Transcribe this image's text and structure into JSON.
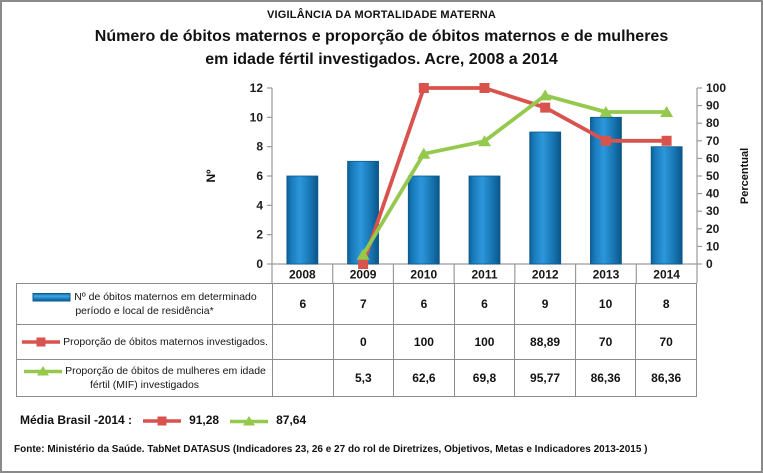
{
  "header": {
    "surtitle": "VIGILÂNCIA DA MORTALIDADE MATERNA",
    "title": "Número de óbitos maternos e proporção de óbitos maternos e de mulheres\nem idade fértil investigados. Acre, 2008 a 2014"
  },
  "chart_data": {
    "type": "bar+line combo",
    "title": "Número de óbitos maternos e proporção de óbitos maternos e de mulheres em idade fértil investigados. Acre, 2008 a 2014",
    "categories": [
      "2008",
      "2009",
      "2010",
      "2011",
      "2012",
      "2013",
      "2014"
    ],
    "series": [
      {
        "name": "Nº  de óbitos maternos em determinado período e local de residência*",
        "type": "bar",
        "axis": "left",
        "color": "#1B84C8",
        "marker": "none",
        "values": [
          6,
          7,
          6,
          6,
          9,
          10,
          8
        ]
      },
      {
        "name": "Proporção de óbitos maternos investigados.",
        "type": "line",
        "axis": "right",
        "color": "#D9534E",
        "marker": "square",
        "values": [
          null,
          0,
          100,
          100,
          88.89,
          70,
          70
        ]
      },
      {
        "name": "Proporção de óbitos de mulheres em idade fértil (MIF) investigados",
        "type": "line",
        "axis": "right",
        "color": "#94C94E",
        "marker": "triangle",
        "values": [
          null,
          5.3,
          62.6,
          69.8,
          95.77,
          86.36,
          86.36
        ]
      }
    ],
    "left_axis": {
      "label": "Nº",
      "min": 0,
      "max": 12,
      "step": 2
    },
    "right_axis": {
      "label": "Percentual",
      "min": 0,
      "max": 100,
      "step": 10
    },
    "grid": false,
    "legend_position": "data-table-below"
  },
  "table": {
    "rows": [
      {
        "icon": "bar",
        "color": "#1B84C8",
        "label": "Nº  de óbitos maternos em determinado período e local de residência*",
        "values": [
          "6",
          "7",
          "6",
          "6",
          "9",
          "10",
          "8"
        ]
      },
      {
        "icon": "line-square",
        "color": "#D9534E",
        "label": "Proporção de óbitos maternos investigados.",
        "values": [
          "",
          "0",
          "100",
          "100",
          "88,89",
          "70",
          "70"
        ]
      },
      {
        "icon": "line-triangle",
        "color": "#94C94E",
        "label": "Proporção de óbitos de mulheres em idade fértil (MIF) investigados",
        "values": [
          "",
          "5,3",
          "62,6",
          "69,8",
          "95,77",
          "86,36",
          "86,36"
        ]
      }
    ]
  },
  "media_brasil": {
    "label": "Média Brasil -2014 :",
    "red_value": "91,28",
    "green_value": "87,64",
    "red_color": "#D9534E",
    "green_color": "#94C94E"
  },
  "footer": {
    "source": "Fonte: Ministério da Saúde. TabNet DATASUS (Indicadores 23, 26 e 27  do rol de Diretrizes, Objetivos, Metas e Indicadores 2013-2015 )"
  },
  "colors": {
    "bar_fill": "#1B84C8",
    "bar_edge": "#0D5B8F",
    "red_line": "#D9534E",
    "green_line": "#94C94E",
    "axis_line": "#9a9a9a",
    "table_border": "#8c8c8c",
    "text": "#121212"
  }
}
